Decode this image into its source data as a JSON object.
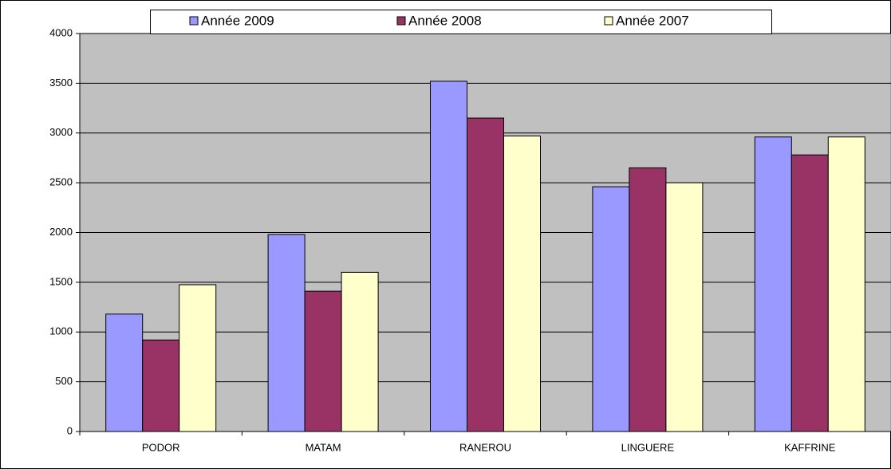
{
  "chart_data": {
    "type": "bar",
    "categories": [
      "PODOR",
      "MATAM",
      "RANEROU",
      "LINGUERE",
      "KAFFRINE"
    ],
    "series": [
      {
        "name": "Année 2009",
        "color": "#9999ff",
        "values": [
          1180,
          1980,
          3520,
          2460,
          2960
        ]
      },
      {
        "name": "Année 2008",
        "color": "#993366",
        "values": [
          920,
          1410,
          3150,
          2650,
          2780
        ]
      },
      {
        "name": "Année 2007",
        "color": "#ffffcc",
        "values": [
          1475,
          1600,
          2970,
          2500,
          2960
        ]
      }
    ],
    "ylim": [
      0,
      4000
    ],
    "yticks": [
      0,
      500,
      1000,
      1500,
      2000,
      2500,
      3000,
      3500,
      4000
    ],
    "grid": true,
    "legend": "top",
    "background": "#c0c0c0"
  }
}
